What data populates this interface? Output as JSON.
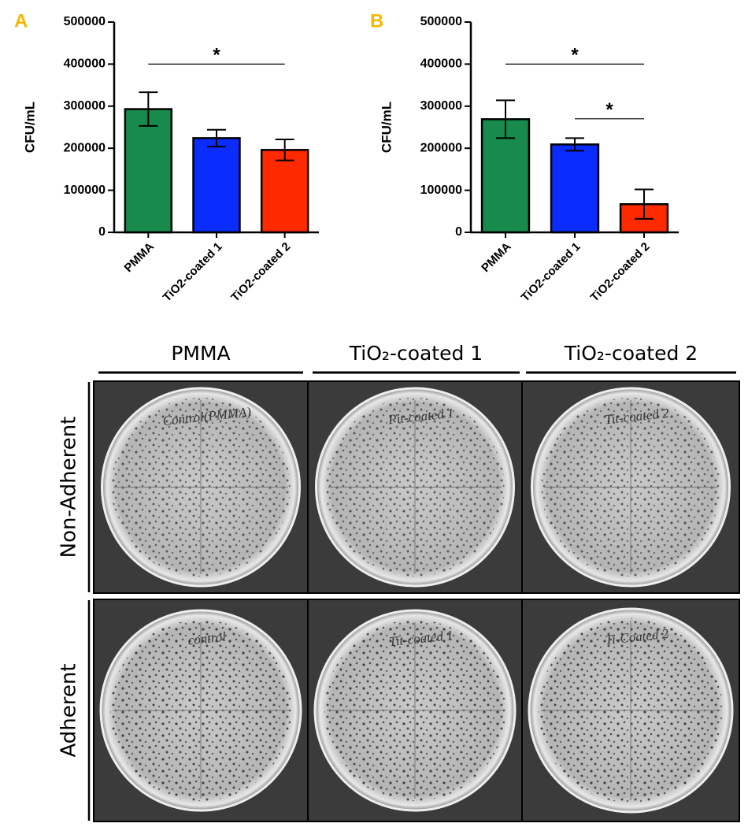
{
  "chart_data": [
    {
      "type": "bar",
      "panel": "A",
      "ylabel": "CFU/mL",
      "categories": [
        "PMMA",
        "TiO2-coated 1",
        "TiO2-coated 2"
      ],
      "values": [
        293000,
        224000,
        196000
      ],
      "errors": [
        40000,
        20000,
        25000
      ],
      "colors": [
        "#178a4c",
        "#0a2cff",
        "#ff2a00"
      ],
      "ylim": [
        0,
        500000
      ],
      "yticks": [
        0,
        100000,
        200000,
        300000,
        400000,
        500000
      ],
      "annotations": [
        {
          "from": 0,
          "to": 2,
          "y": 400000,
          "label": "*"
        }
      ]
    },
    {
      "type": "bar",
      "panel": "B",
      "ylabel": "CFU/mL",
      "categories": [
        "PMMA",
        "TiO2-coated 1",
        "TiO2-coated 2"
      ],
      "values": [
        269000,
        209000,
        67000
      ],
      "errors": [
        45000,
        15000,
        35000
      ],
      "colors": [
        "#178a4c",
        "#0a2cff",
        "#ff2a00"
      ],
      "ylim": [
        0,
        500000
      ],
      "yticks": [
        0,
        100000,
        200000,
        300000,
        400000,
        500000
      ],
      "annotations": [
        {
          "from": 0,
          "to": 2,
          "y": 400000,
          "label": "*"
        },
        {
          "from": 1,
          "to": 2,
          "y": 270000,
          "label": "*"
        }
      ]
    }
  ],
  "photos": {
    "columns": [
      "PMMA",
      "TiO₂-coated 1",
      "TiO₂-coated 2"
    ],
    "rows": [
      "Non-Adherent",
      "Adherent"
    ],
    "plate_labels": [
      [
        "Control(PMMA)",
        "Pit-coated 1",
        "Tit-coated 2"
      ],
      [
        "control",
        "Tit-coated 1",
        "Ti-Coated 2"
      ]
    ]
  }
}
